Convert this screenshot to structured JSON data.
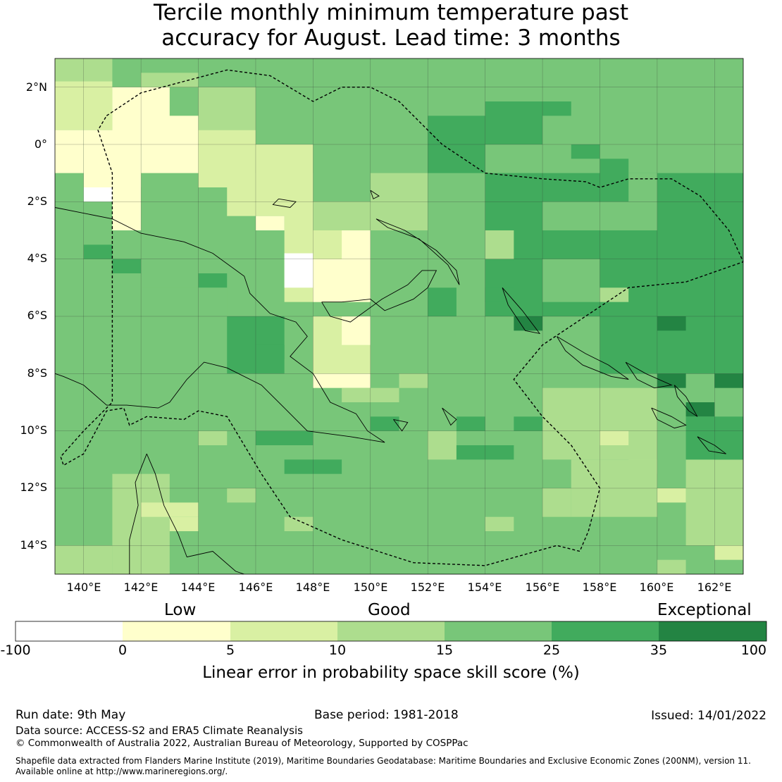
{
  "title": {
    "line1": "Tercile monthly minimum temperature past",
    "line2": "accuracy for August. Lead time: 3 months"
  },
  "map": {
    "lon_range": [
      139,
      163
    ],
    "lat_range": [
      -15,
      3
    ],
    "lon_ticks": [
      "140°E",
      "142°E",
      "144°E",
      "146°E",
      "148°E",
      "150°E",
      "152°E",
      "154°E",
      "156°E",
      "158°E",
      "160°E",
      "162°E"
    ],
    "lat_ticks": [
      "2°N",
      "0°",
      "2°S",
      "4°S",
      "6°S",
      "8°S",
      "10°S",
      "12°S",
      "14°S"
    ],
    "gridlines": true,
    "value_layer": "gridded skill score by color class"
  },
  "legend": {
    "category_labels": [
      "Low",
      "Good",
      "Exceptional"
    ],
    "tick_labels": [
      "-100",
      "0",
      "5",
      "10",
      "15",
      "25",
      "35",
      "100"
    ],
    "colors": [
      "#ffffff",
      "#ffffcc",
      "#d9f0a3",
      "#addd8e",
      "#78c679",
      "#41ab5d",
      "#238443"
    ],
    "colorbar_label": "Linear error in probability space skill score (%)"
  },
  "footer": {
    "run_date": "Run date: 9th May",
    "base_period": "Base period: 1981-2018",
    "issued": "Issued: 14/01/2022",
    "data_source": "Data source: ACCESS-S2 and ERA5 Climate Reanalysis",
    "copyright": "© Commonwealth of Australia 2022, Australian Bureau of Meteorology, Supported by COSPPac",
    "shapefile_line1": "Shapefile data extracted from Flanders Marine Institute (2019), Maritime Boundaries Geodatabase: Maritime Boundaries and Exclusive Economic Zones (200NM), version 11.",
    "shapefile_line2": "Available online at http://www.marineregions.org/."
  }
}
